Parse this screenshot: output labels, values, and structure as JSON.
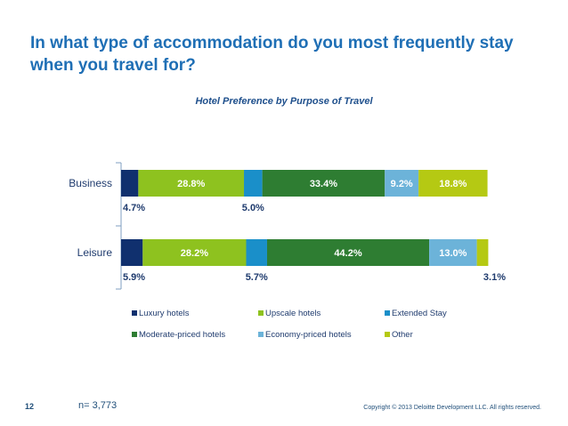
{
  "page": {
    "title": "In what type of accommodation do you most frequently stay when you travel for?",
    "page_number": "12",
    "sample_size": "n= 3,773",
    "copyright": "Copyright © 2013 Deloitte Development LLC. All rights reserved."
  },
  "chart_data": {
    "type": "bar",
    "orientation": "horizontal",
    "stacked": true,
    "title": "Hotel Preference  by Purpose  of Travel",
    "categories": [
      "Business",
      "Leisure"
    ],
    "series": [
      {
        "name": "Luxury hotels",
        "color": "#10306e",
        "values": [
          4.7,
          5.9
        ],
        "labels": [
          "4.7%",
          "5.9%"
        ]
      },
      {
        "name": "Upscale hotels",
        "color": "#8ec21f",
        "values": [
          28.8,
          28.2
        ],
        "labels": [
          "28.8%",
          "28.2%"
        ]
      },
      {
        "name": "Extended Stay",
        "color": "#1a8fc9",
        "values": [
          5.0,
          5.7
        ],
        "labels": [
          "5.0%",
          "5.7%"
        ]
      },
      {
        "name": "Moderate-priced hotels",
        "color": "#2e7d32",
        "values": [
          33.4,
          44.2
        ],
        "labels": [
          "33.4%",
          "44.2%"
        ]
      },
      {
        "name": "Economy-priced hotels",
        "color": "#6cb3d9",
        "values": [
          9.2,
          13.0
        ],
        "labels": [
          "9.2%",
          "13.0%"
        ]
      },
      {
        "name": "Other",
        "color": "#b5c913",
        "values": [
          18.8,
          3.1
        ],
        "labels": [
          "18.8%",
          "3.1%"
        ]
      }
    ],
    "xlim": [
      0,
      100
    ],
    "grid": false,
    "legend_position": "bottom"
  }
}
